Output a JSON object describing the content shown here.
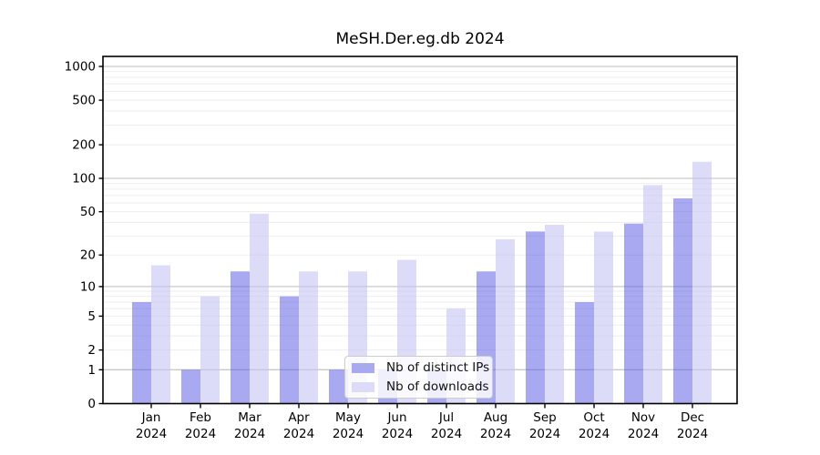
{
  "chart_data": {
    "type": "bar",
    "title": "MeSH.Der.eg.db 2024",
    "categories": [
      "Jan",
      "Feb",
      "Mar",
      "Apr",
      "May",
      "Jun",
      "Jul",
      "Aug",
      "Sep",
      "Oct",
      "Nov",
      "Dec"
    ],
    "year_label": "2024",
    "series": [
      {
        "name": "Nb of distinct IPs",
        "values": [
          7,
          1,
          14,
          8,
          1,
          1,
          1,
          14,
          33,
          7,
          39,
          66
        ],
        "fill": "#5b5be5",
        "fill_opacity": 0.52,
        "swatch": "#a9a9f0"
      },
      {
        "name": "Nb of downloads",
        "values": [
          16,
          8,
          48,
          14,
          14,
          18,
          6,
          28,
          38,
          33,
          87,
          141
        ],
        "fill": "#c4c4f4",
        "fill_opacity": 0.6,
        "swatch": "#dcdcf8"
      }
    ],
    "y_axis": {
      "scale": "log1p",
      "tick_labels": [
        "0",
        "1",
        "2",
        "5",
        "10",
        "20",
        "50",
        "100",
        "200",
        "500",
        "1000"
      ],
      "ticks": [
        0,
        1,
        2,
        5,
        10,
        20,
        50,
        100,
        200,
        500,
        1000
      ],
      "ylim": [
        0,
        1200
      ]
    },
    "grid": {
      "major_lines": [
        1,
        10,
        100,
        1000
      ],
      "major_color": "#c9c9c9",
      "minor_color": "#ededed",
      "grid_on": true
    },
    "legend": {
      "position": "inside-bottom-center",
      "labels": [
        "Nb of distinct IPs",
        "Nb of downloads"
      ]
    },
    "axis_color": "#000000",
    "background": "#ffffff"
  }
}
